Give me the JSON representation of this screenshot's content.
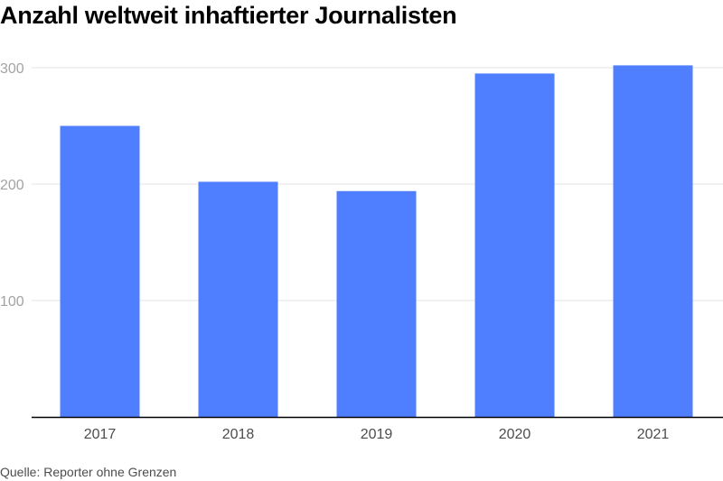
{
  "chart_data": {
    "type": "bar",
    "title": "Anzahl weltweit inhaftierter Journalisten",
    "xlabel": "",
    "ylabel": "",
    "categories": [
      "2017",
      "2018",
      "2019",
      "2020",
      "2021"
    ],
    "values": [
      250,
      202,
      194,
      295,
      302
    ],
    "ylim": [
      0,
      300
    ],
    "yticks": [
      100,
      200,
      300
    ],
    "grid": true,
    "legend": "none",
    "colors": {
      "bar": "#4f7fff",
      "grid": "#e3e3e3",
      "axis": "#000000"
    }
  },
  "source": "Quelle: Reporter ohne Grenzen"
}
